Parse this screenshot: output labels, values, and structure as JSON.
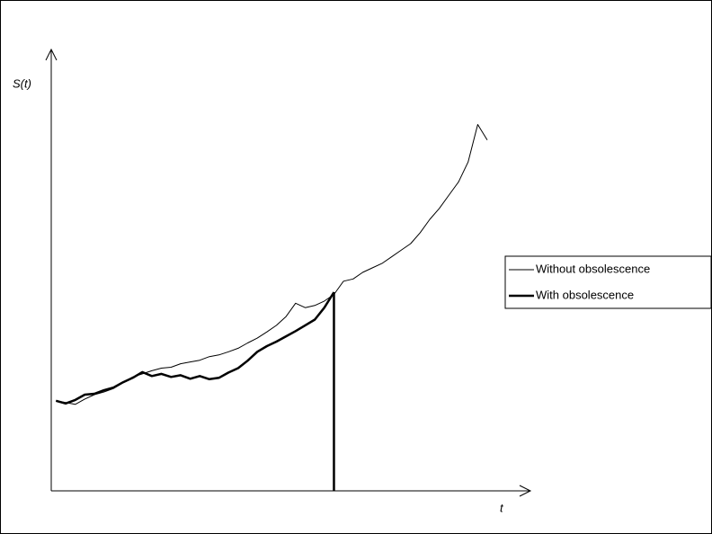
{
  "chart_data": {
    "type": "line",
    "x_label": "t",
    "y_label": "S(t)",
    "xlim": [
      0,
      100
    ],
    "ylim": [
      0,
      100
    ],
    "legend": "right",
    "series": [
      {
        "name": "Without obsolescence",
        "color": "#000000",
        "x": [
          1,
          3,
          5,
          7,
          9,
          11,
          13,
          15,
          17,
          19,
          21,
          23,
          25,
          27,
          29,
          31,
          33,
          35,
          37,
          39,
          41,
          43,
          45,
          47,
          49,
          51,
          53,
          55,
          57,
          59,
          61,
          63,
          65,
          67,
          69,
          71,
          73,
          75,
          77,
          79,
          81,
          83,
          85,
          87,
          89,
          91
        ],
        "values": [
          20.4,
          20.0,
          19.6,
          20.8,
          21.8,
          22.4,
          23.2,
          24.5,
          25.8,
          26.5,
          27.2,
          27.8,
          28.0,
          28.8,
          29.2,
          29.6,
          30.4,
          30.8,
          31.5,
          32.3,
          33.5,
          34.6,
          36.0,
          37.5,
          39.5,
          42.5,
          41.5,
          42.0,
          43.0,
          44.5,
          47.5,
          48.0,
          49.5,
          50.5,
          51.5,
          53.0,
          54.5,
          56.0,
          58.5,
          61.5,
          64.0,
          67.0,
          70.0,
          74.5,
          83.0,
          79.5
        ]
      },
      {
        "name": "With obsolescence",
        "color": "#000000",
        "x": [
          1,
          3,
          5,
          7,
          9,
          11,
          13,
          15,
          17,
          19,
          21,
          23,
          25,
          27,
          29,
          31,
          33,
          35,
          37,
          39,
          41,
          43,
          45,
          47,
          49,
          51,
          53,
          55,
          57,
          59
        ],
        "values": [
          20.4,
          19.8,
          20.6,
          21.8,
          22.0,
          22.8,
          23.4,
          24.6,
          25.6,
          26.9,
          26.0,
          26.5,
          25.8,
          26.2,
          25.4,
          26.0,
          25.3,
          25.6,
          26.8,
          27.8,
          29.5,
          31.5,
          32.8,
          33.8,
          35.0,
          36.2,
          37.5,
          38.8,
          41.5,
          45.0
        ]
      }
    ]
  }
}
